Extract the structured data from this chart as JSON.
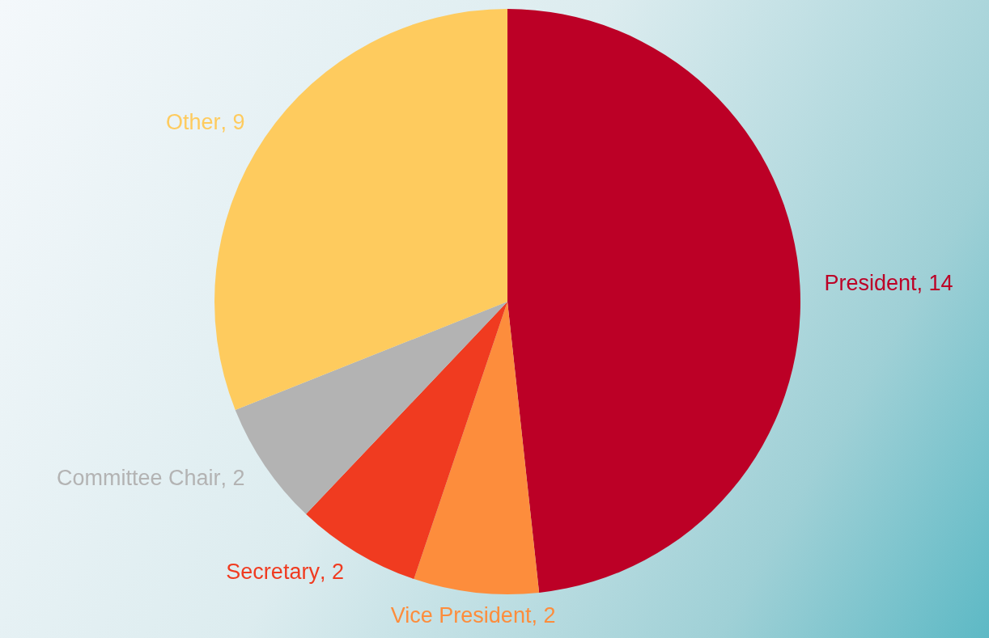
{
  "chart_data": {
    "type": "pie",
    "categories": [
      "President",
      "Vice President",
      "Secretary",
      "Committee Chair",
      "Other"
    ],
    "values": [
      14,
      2,
      2,
      2,
      9
    ],
    "colors": [
      "#bc0026",
      "#fd8d3c",
      "#f03b20",
      "#b3b3b3",
      "#fecb5e"
    ],
    "value_labels": [
      ", 14",
      ", 2",
      ", 2",
      ", 2",
      ", 9"
    ],
    "legend": false
  }
}
